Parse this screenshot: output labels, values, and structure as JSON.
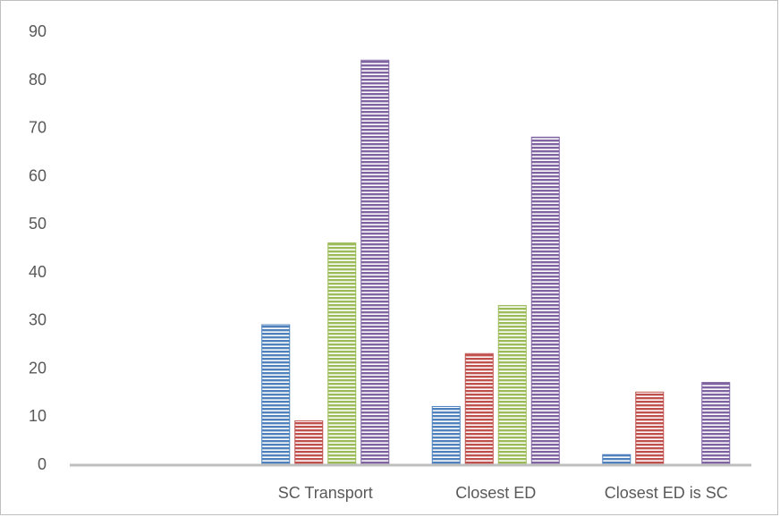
{
  "chart_data": {
    "type": "bar",
    "title": "",
    "xlabel": "",
    "ylabel": "",
    "ylim": [
      0,
      90
    ],
    "yticks": [
      0,
      10,
      20,
      30,
      40,
      50,
      60,
      70,
      80,
      90
    ],
    "grid": false,
    "legend": "none",
    "categories": [
      "",
      "SC Transport",
      "Closest ED",
      "Closest ED is SC"
    ],
    "series": [
      {
        "color": "#4f81bd",
        "values": [
          0,
          29,
          12,
          2
        ]
      },
      {
        "color": "#c0504d",
        "values": [
          0,
          9,
          23,
          15
        ]
      },
      {
        "color": "#9bbb59",
        "values": [
          0,
          46,
          33,
          0
        ]
      },
      {
        "color": "#8064a2",
        "values": [
          0,
          84,
          68,
          17
        ]
      }
    ]
  }
}
